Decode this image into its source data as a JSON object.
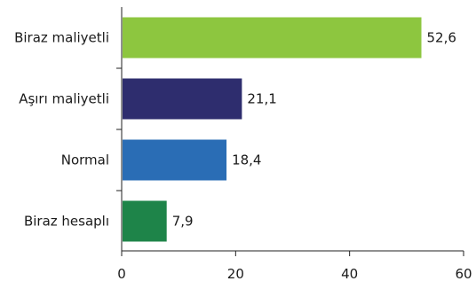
{
  "chart_data": {
    "type": "bar",
    "orientation": "horizontal",
    "categories": [
      "Biraz maliyetli",
      "Aşırı maliyetli",
      "Normal",
      "Biraz hesaplı"
    ],
    "values": [
      52.6,
      21.1,
      18.4,
      7.9
    ],
    "value_labels": [
      "52,6",
      "21,1",
      "18,4",
      "7,9"
    ],
    "colors": [
      "#8dc63f",
      "#2e2d6e",
      "#2a6db5",
      "#1e8449"
    ],
    "xlim": [
      0,
      60
    ],
    "xticks": [
      0,
      20,
      40,
      60
    ],
    "xtick_labels": [
      "0",
      "20",
      "40",
      "60"
    ],
    "grid": false,
    "legend": "none",
    "title": "",
    "xlabel": "",
    "ylabel": ""
  }
}
